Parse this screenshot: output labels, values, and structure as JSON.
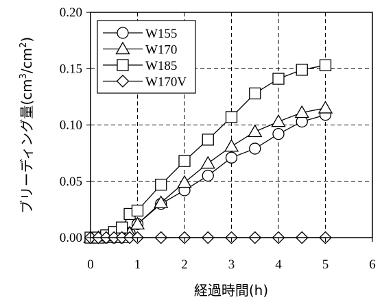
{
  "chart_data": {
    "type": "line",
    "xlabel": "経過時間(h)",
    "ylabel_text": "ブリーディング量(cm",
    "ylabel_sup1": "3",
    "ylabel_mid": "/cm",
    "ylabel_sup2": "2",
    "ylabel_end": ")",
    "xlim": [
      0,
      6
    ],
    "ylim": [
      0,
      0.2
    ],
    "xticks": [
      0,
      1,
      2,
      3,
      4,
      5,
      6
    ],
    "xtick_labels": [
      "0",
      "1",
      "2",
      "3",
      "4",
      "5",
      "6"
    ],
    "yticks": [
      0,
      0.05,
      0.1,
      0.15,
      0.2
    ],
    "ytick_labels": [
      "0.00",
      "0.05",
      "0.10",
      "0.15",
      "0.20"
    ],
    "grid": true,
    "legend_position": "top-left",
    "series": [
      {
        "name": "W155",
        "marker": "circle",
        "x": [
          0,
          0.167,
          0.333,
          0.5,
          0.667,
          0.833,
          1,
          1.5,
          2,
          2.5,
          3,
          3.5,
          4,
          4.5,
          5
        ],
        "y": [
          0,
          0,
          0,
          0,
          0,
          0.004,
          0.012,
          0.03,
          0.042,
          0.055,
          0.071,
          0.079,
          0.092,
          0.103,
          0.109
        ]
      },
      {
        "name": "W170",
        "marker": "triangle",
        "x": [
          0,
          0.167,
          0.333,
          0.5,
          0.667,
          0.833,
          1,
          1.5,
          2,
          2.5,
          3,
          3.5,
          4,
          4.5,
          5
        ],
        "y": [
          0,
          0,
          0,
          0,
          0,
          0.004,
          0.012,
          0.031,
          0.049,
          0.066,
          0.081,
          0.094,
          0.103,
          0.111,
          0.115
        ]
      },
      {
        "name": "W185",
        "marker": "square",
        "x": [
          0,
          0.167,
          0.333,
          0.5,
          0.667,
          0.833,
          1,
          1.5,
          2,
          2.5,
          3,
          3.5,
          4,
          4.5,
          5
        ],
        "y": [
          0,
          0,
          0.002,
          0.005,
          0.009,
          0.021,
          0.024,
          0.047,
          0.068,
          0.087,
          0.107,
          0.128,
          0.141,
          0.149,
          0.153
        ]
      },
      {
        "name": "W170V",
        "marker": "diamond",
        "x": [
          0,
          0.167,
          0.333,
          0.5,
          0.667,
          0.833,
          1,
          1.5,
          2,
          2.5,
          3,
          3.5,
          4,
          4.5,
          5
        ],
        "y": [
          0,
          0,
          0,
          0,
          0,
          0,
          0,
          0,
          0,
          0,
          0,
          0,
          0,
          0,
          0
        ]
      }
    ]
  }
}
